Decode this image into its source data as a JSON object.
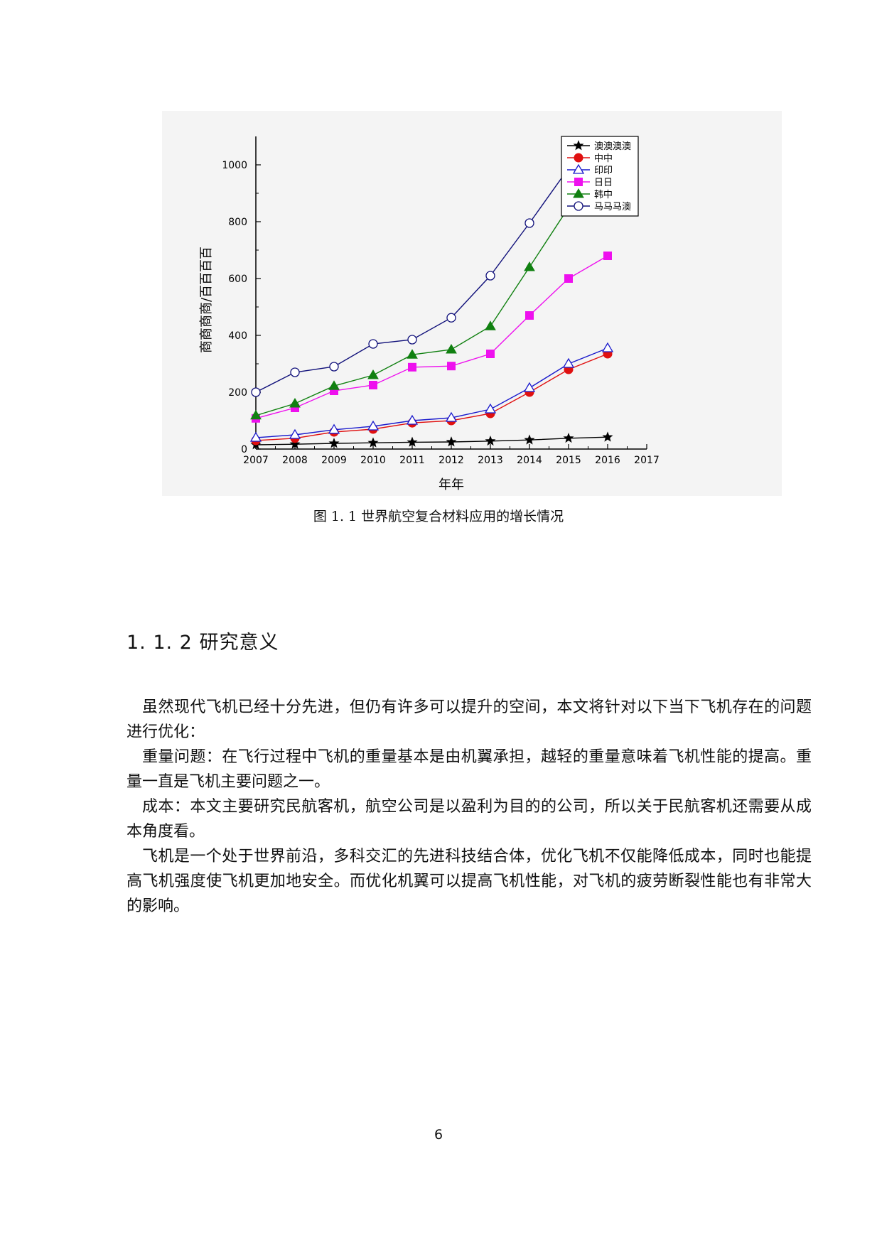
{
  "chart_data": {
    "type": "line",
    "x": [
      2007,
      2008,
      2009,
      2010,
      2011,
      2012,
      2013,
      2014,
      2015,
      2016
    ],
    "x_ticks": [
      "2007",
      "2008",
      "2009",
      "2010",
      "2011",
      "2012",
      "2013",
      "2014",
      "2015",
      "2016",
      "2017"
    ],
    "y_ticks": [
      "0",
      "200",
      "400",
      "600",
      "800",
      "1000"
    ],
    "xlim": [
      2007,
      2017
    ],
    "ylim": [
      0,
      1100
    ],
    "xlabel": "年年",
    "ylabel": "商商商商/百百百百",
    "legend_position": "top-right",
    "grid": false,
    "series": [
      {
        "name": "澳澳澳澳",
        "marker": "star",
        "color": "#000000",
        "values": [
          15,
          17,
          20,
          22,
          24,
          25,
          28,
          32,
          38,
          42
        ]
      },
      {
        "name": "中中",
        "marker": "circle-filled",
        "color": "#e01010",
        "values": [
          30,
          38,
          60,
          70,
          92,
          100,
          125,
          200,
          280,
          335
        ]
      },
      {
        "name": "印印",
        "marker": "triangle-open",
        "color": "#1a1acc",
        "values": [
          40,
          50,
          68,
          80,
          100,
          110,
          140,
          215,
          300,
          355
        ]
      },
      {
        "name": "日日",
        "marker": "square-filled",
        "color": "#ee10ee",
        "values": [
          108,
          145,
          205,
          225,
          288,
          292,
          335,
          470,
          600,
          680
        ]
      },
      {
        "name": "韩中",
        "marker": "triangle-filled",
        "color": "#108010",
        "values": [
          118,
          160,
          222,
          260,
          332,
          350,
          432,
          640,
          850,
          988
        ]
      },
      {
        "name": "马马马澳",
        "marker": "circle-open",
        "color": "#10107a",
        "values": [
          200,
          270,
          290,
          370,
          385,
          462,
          610,
          795,
          988,
          1015
        ]
      }
    ]
  },
  "figure_caption": "图 1. 1 世界航空复合材料应用的增长情况",
  "section_heading": "1. 1. 2 研究意义",
  "paragraphs": [
    "虽然现代飞机已经十分先进，但仍有许多可以提升的空间，本文将针对以下当下飞机存在的问题进行优化：",
    "重量问题：在飞行过程中飞机的重量基本是由机翼承担，越轻的重量意味着飞机性能的提高。重量一直是飞机主要问题之一。",
    "成本：本文主要研究民航客机，航空公司是以盈利为目的的公司，所以关于民航客机还需要从成本角度看。",
    "飞机是一个处于世界前沿，多科交汇的先进科技结合体，优化飞机不仅能降低成本，同时也能提高飞机强度使飞机更加地安全。而优化机翼可以提高飞机性能，对飞机的疲劳断裂性能也有非常大的影响。"
  ],
  "page_number": "6"
}
